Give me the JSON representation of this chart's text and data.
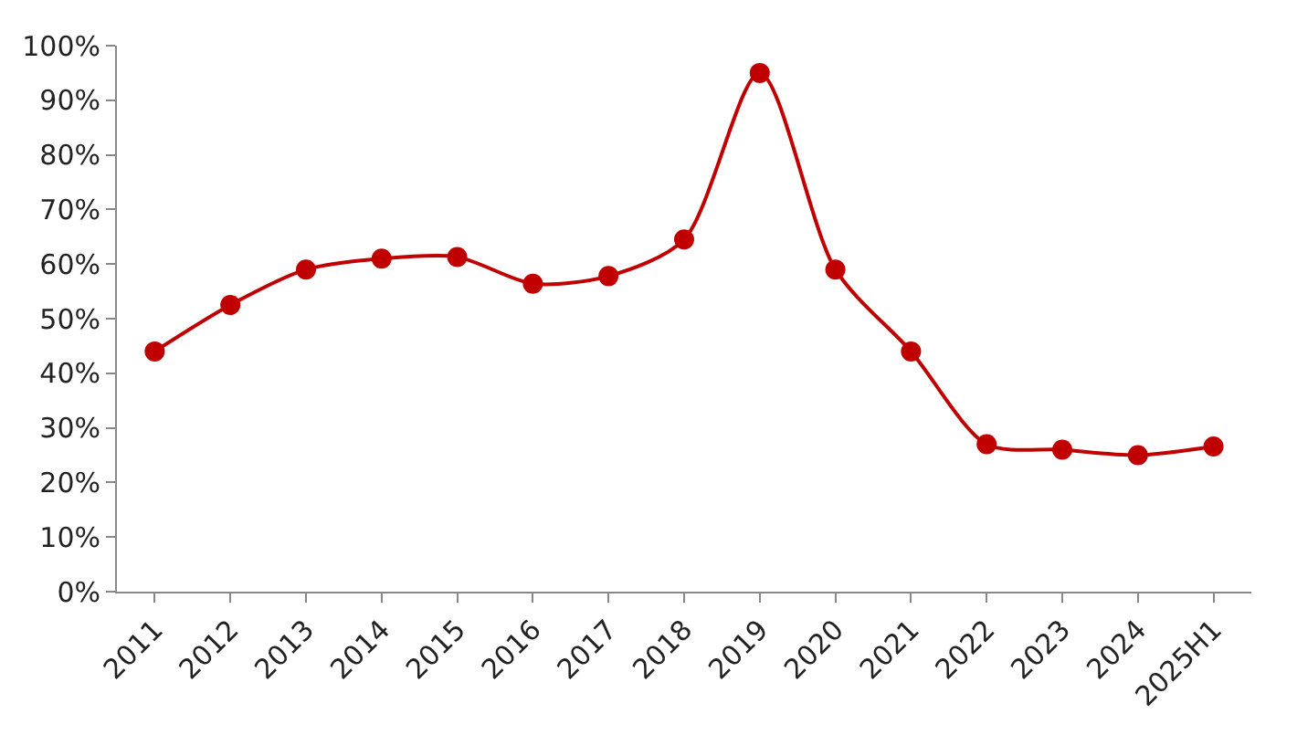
{
  "chart_data": {
    "type": "line",
    "categories": [
      "2011",
      "2012",
      "2013",
      "2014",
      "2015",
      "2016",
      "2017",
      "2018",
      "2019",
      "2020",
      "2021",
      "2022",
      "2023",
      "2024",
      "2025H1"
    ],
    "series": [
      {
        "color": "#c00000",
        "values": [
          44,
          52.5,
          59,
          61,
          61.3,
          56.4,
          57.8,
          64.5,
          95,
          59,
          44,
          27,
          26,
          25,
          26.6
        ]
      }
    ],
    "ylim": [
      0,
      100
    ],
    "yticks": [
      {
        "value": 0,
        "label": "0%"
      },
      {
        "value": 10,
        "label": "10%"
      },
      {
        "value": 20,
        "label": "20%"
      },
      {
        "value": 30,
        "label": "30%"
      },
      {
        "value": 40,
        "label": "40%"
      },
      {
        "value": 50,
        "label": "50%"
      },
      {
        "value": 60,
        "label": "60%"
      },
      {
        "value": 70,
        "label": "70%"
      },
      {
        "value": 80,
        "label": "80%"
      },
      {
        "value": 90,
        "label": "90%"
      },
      {
        "value": 100,
        "label": "100%"
      }
    ],
    "legend": false,
    "marker": "circle",
    "line_style": "solid"
  }
}
